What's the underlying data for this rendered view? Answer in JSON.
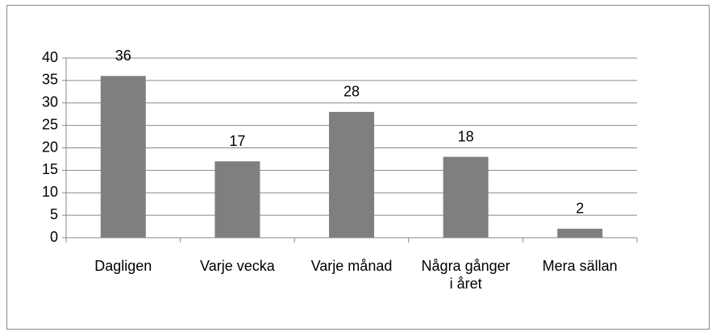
{
  "chart_data": {
    "type": "bar",
    "categories": [
      "Dagligen",
      "Varje vecka",
      "Varje månad",
      "Några gånger i året",
      "Mera sällan"
    ],
    "values": [
      36,
      17,
      28,
      18,
      2
    ],
    "color": "#7f7f7f",
    "ylim": [
      0,
      40
    ],
    "yticks": [
      0,
      5,
      10,
      15,
      20,
      25,
      30,
      35,
      40
    ],
    "grid": true,
    "data_labels": true
  }
}
